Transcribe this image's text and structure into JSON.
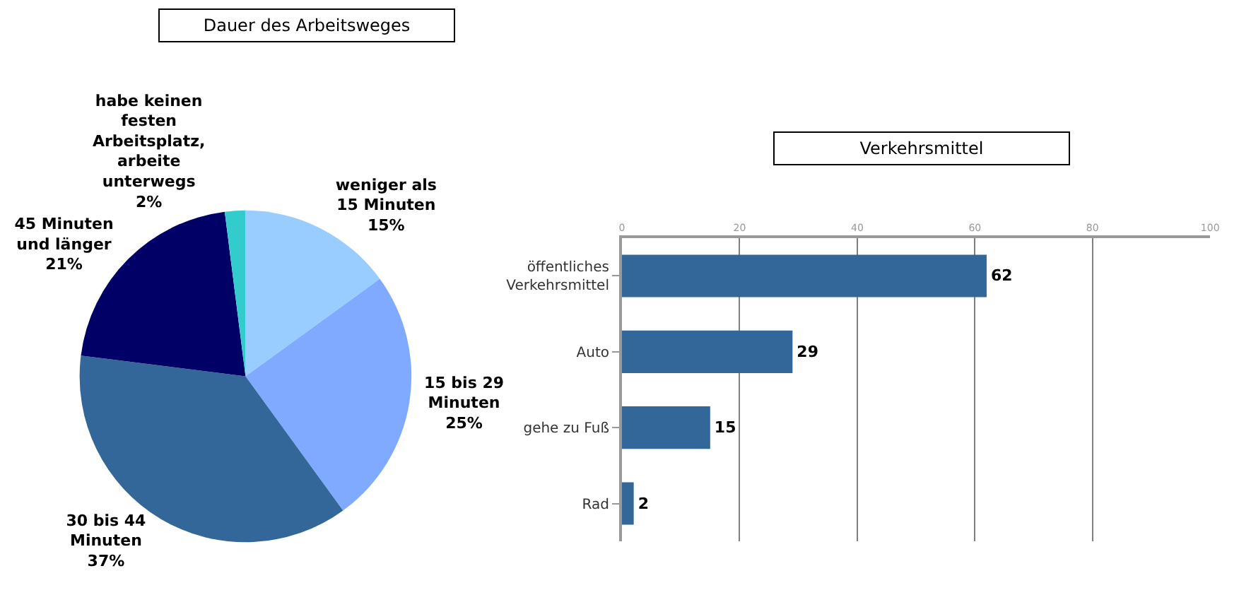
{
  "chart_data": [
    {
      "type": "pie",
      "title": "Dauer des Arbeitsweges",
      "categories": [
        "weniger als 15 Minuten",
        "15 bis 29 Minuten",
        "30 bis 44 Minuten",
        "45 Minuten und länger",
        "habe keinen festen Arbeitsplatz, arbeite unterwegs"
      ],
      "values": [
        15,
        25,
        37,
        21,
        2
      ],
      "value_labels": [
        "15%",
        "25%",
        "37%",
        "21%",
        "2%"
      ],
      "colors": [
        "#99ccff",
        "#80aaff",
        "#336699",
        "#000066",
        "#33cccc"
      ]
    },
    {
      "type": "bar",
      "orientation": "horizontal",
      "title": "Verkehrsmittel",
      "categories": [
        "öffentliches Verkehrsmittel",
        "Auto",
        "gehe zu Fuß",
        "Rad"
      ],
      "values": [
        62,
        29,
        15,
        2
      ],
      "color": "#336699",
      "xlim": [
        0,
        100
      ],
      "xticks": [
        0,
        20,
        40,
        60,
        80,
        100
      ],
      "grid": "x",
      "data_labels": true
    }
  ]
}
